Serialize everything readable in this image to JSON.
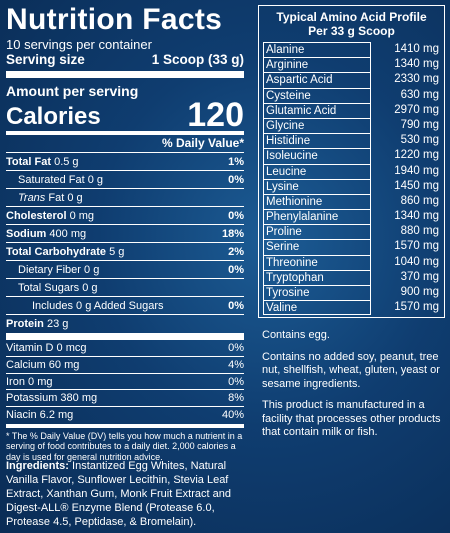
{
  "nutrition": {
    "title": "Nutrition Facts",
    "servings": "10 servings per container",
    "serving_size_label": "Serving size",
    "serving_size": "1 Scoop (33 g)",
    "amount_per_serving": "Amount per serving",
    "calories_label": "Calories",
    "calories": 120,
    "dv_header": "% Daily Value*",
    "rows": [
      {
        "label": "Total Fat",
        "amount": "0.5 g",
        "dv": "1%"
      },
      {
        "label": "Saturated Fat",
        "amount": "0 g",
        "dv": "0%"
      },
      {
        "label_italic": "Trans",
        "label": "Fat",
        "amount": "0 g"
      },
      {
        "label": "Cholesterol",
        "amount": "0 mg",
        "dv": "0%"
      },
      {
        "label": "Sodium",
        "amount": "400 mg",
        "dv": "18%"
      },
      {
        "label": "Total Carbohydrate",
        "amount": "5 g",
        "dv": "2%"
      },
      {
        "label": "Dietary Fiber",
        "amount": "0 g",
        "dv": "0%"
      },
      {
        "label": "Total Sugars",
        "amount": "0 g"
      },
      {
        "label": "Includes 0 g Added Sugars",
        "dv": "0%"
      },
      {
        "label": "Protein",
        "amount": "23 g"
      },
      {
        "label": "Vitamin D",
        "amount": "0 mcg",
        "dv": "0%"
      },
      {
        "label": "Calcium",
        "amount": "60 mg",
        "dv": "4%"
      },
      {
        "label": "Iron",
        "amount": "0 mg",
        "dv": "0%"
      },
      {
        "label": "Potassium",
        "amount": "380 mg",
        "dv": "8%"
      },
      {
        "label": "Niacin",
        "amount": "6.2 mg",
        "dv": "40%"
      }
    ],
    "footnote": "* The % Daily Value (DV) tells you how much a nutrient in a serving of food contributes to a daily diet. 2,000 calories a day is used for general nutrition advice.",
    "ingredients_label": "Ingredients:",
    "ingredients": "Instantized Egg Whites, Natural Vanilla Flavor, Sunflower Lecithin, Stevia Leaf Extract, Xanthan Gum, Monk Fruit Extract and Digest-ALL® Enzyme Blend (Protease 6.0, Protease 4.5, Peptidase, & Bromelain)."
  },
  "amino": {
    "title": "Typical Amino Acid Profile",
    "subtitle": "Per 33 g Scoop",
    "rows": [
      {
        "name": "Alanine",
        "amount": "1410 mg"
      },
      {
        "name": "Arginine",
        "amount": "1340 mg"
      },
      {
        "name": "Aspartic Acid",
        "amount": "2330 mg"
      },
      {
        "name": "Cysteine",
        "amount": "630 mg"
      },
      {
        "name": "Glutamic Acid",
        "amount": "2970 mg"
      },
      {
        "name": "Glycine",
        "amount": "790 mg"
      },
      {
        "name": "Histidine",
        "amount": "530 mg"
      },
      {
        "name": "Isoleucine",
        "amount": "1220 mg"
      },
      {
        "name": "Leucine",
        "amount": "1940 mg"
      },
      {
        "name": "Lysine",
        "amount": "1450 mg"
      },
      {
        "name": "Methionine",
        "amount": "860 mg"
      },
      {
        "name": "Phenylalanine",
        "amount": "1340 mg"
      },
      {
        "name": "Proline",
        "amount": "880 mg"
      },
      {
        "name": "Serine",
        "amount": "1570 mg"
      },
      {
        "name": "Threonine",
        "amount": "1040 mg"
      },
      {
        "name": "Tryptophan",
        "amount": "370 mg"
      },
      {
        "name": "Tyrosine",
        "amount": "900 mg"
      },
      {
        "name": "Valine",
        "amount": "1570 mg"
      }
    ],
    "notes": [
      "Contains egg.",
      "Contains no added soy, peanut, tree nut, shellfish, wheat, gluten, yeast or sesame ingredients.",
      "This product is manufactured in a facility that processes other products that contain milk or fish."
    ]
  }
}
